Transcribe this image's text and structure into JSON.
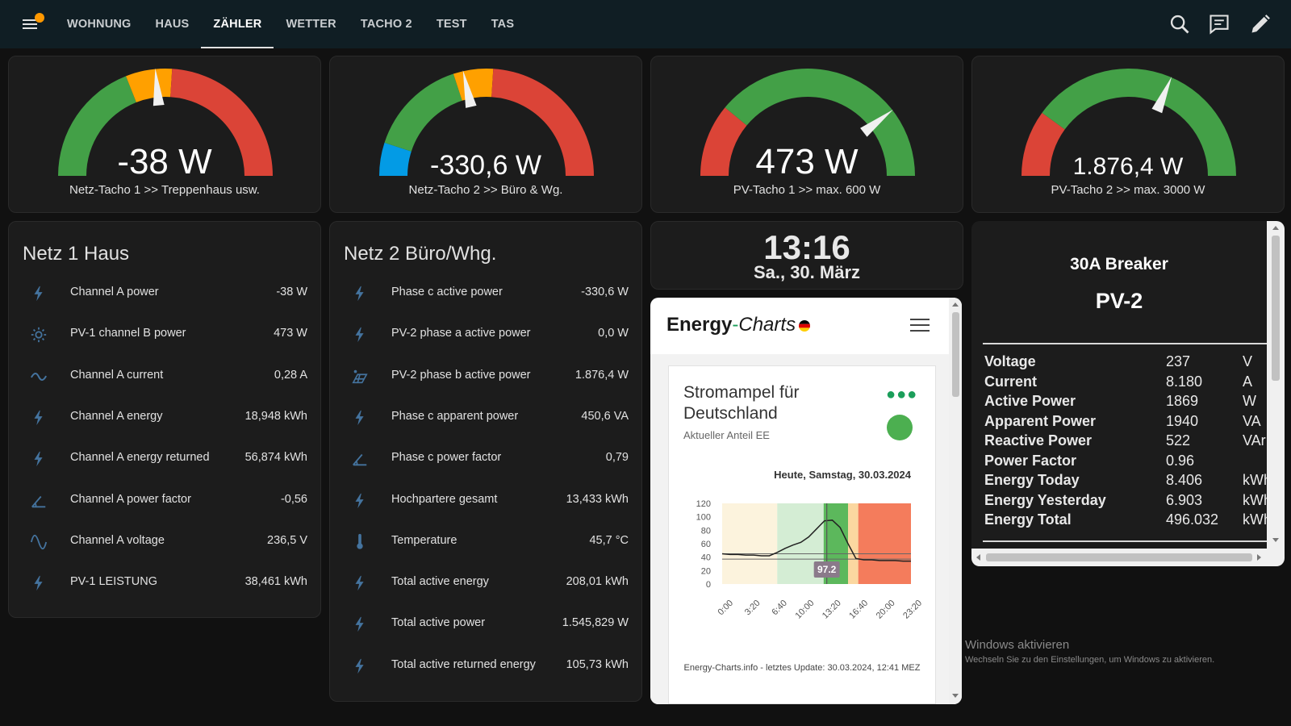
{
  "nav": {
    "tabs": [
      "WOHNUNG",
      "HAUS",
      "ZÄHLER",
      "WETTER",
      "TACHO 2",
      "TEST",
      "TAS"
    ],
    "active_tab": "ZÄHLER",
    "icons": [
      "search-icon",
      "assist-icon",
      "edit-icon"
    ]
  },
  "gauges": [
    {
      "value": "-38 W",
      "label": "Netz-Tacho 1 >> Treppenhaus usw.",
      "needle_fraction": 0.47,
      "segments": [
        "#43a047",
        "#ffa000",
        "#db4437"
      ]
    },
    {
      "value": "-330,6 W",
      "label": "Netz-Tacho 2 >> Büro & Wg.",
      "needle_fraction": 0.43,
      "segments": [
        "#039be5",
        "#43a047",
        "#ffa000",
        "#db4437"
      ]
    },
    {
      "value": "473 W",
      "label": "PV-Tacho 1 >> max. 600 W",
      "needle_fraction": 0.79,
      "segments": [
        "#db4437",
        "#43a047"
      ]
    },
    {
      "value": "1.876,4 W",
      "label": "PV-Tacho 2 >> max. 3000 W",
      "needle_fraction": 0.63,
      "segments": [
        "#db4437",
        "#43a047"
      ]
    }
  ],
  "netz1": {
    "title": "Netz 1 Haus",
    "rows": [
      {
        "icon": "flash-icon",
        "name": "Channel A power",
        "value": "-38 W"
      },
      {
        "icon": "solar-power-icon",
        "name": "PV-1 channel B power",
        "value": "473 W"
      },
      {
        "icon": "current-ac-icon",
        "name": "Channel A current",
        "value": "0,28 A"
      },
      {
        "icon": "flash-icon",
        "name": "Channel A energy",
        "value": "18,948 kWh"
      },
      {
        "icon": "flash-icon",
        "name": "Channel A energy returned",
        "value": "56,874 kWh"
      },
      {
        "icon": "angle-acute-icon",
        "name": "Channel A power factor",
        "value": "-0,56"
      },
      {
        "icon": "sine-wave-icon",
        "name": "Channel A voltage",
        "value": "236,5 V"
      },
      {
        "icon": "flash-icon",
        "name": "PV-1 LEISTUNG",
        "value": "38,461 kWh"
      }
    ]
  },
  "netz2": {
    "title": "Netz 2 Büro/Whg.",
    "rows": [
      {
        "icon": "flash-icon",
        "name": "Phase c active power",
        "value": "-330,6 W"
      },
      {
        "icon": "flash-icon",
        "name": "PV-2 phase a active power",
        "value": "0,0 W"
      },
      {
        "icon": "solar-panel-icon",
        "name": "PV-2 phase b active power",
        "value": "1.876,4 W"
      },
      {
        "icon": "flash-icon",
        "name": "Phase c apparent power",
        "value": "450,6 VA"
      },
      {
        "icon": "angle-acute-icon",
        "name": "Phase c power factor",
        "value": "0,79"
      },
      {
        "icon": "flash-icon",
        "name": "Hochpartere gesamt",
        "value": "13,433 kWh"
      },
      {
        "icon": "thermometer-icon",
        "name": "Temperature",
        "value": "45,7 °C"
      },
      {
        "icon": "flash-icon",
        "name": "Total active energy",
        "value": "208,01 kWh"
      },
      {
        "icon": "flash-icon",
        "name": "Total active power",
        "value": "1.545,829 W"
      },
      {
        "icon": "flash-icon",
        "name": "Total active returned energy",
        "value": "105,73 kWh"
      }
    ]
  },
  "clock": {
    "time": "13:16",
    "date": "Sa., 30. März"
  },
  "energy_charts": {
    "logo_bold": "Energy",
    "logo_dash": "-",
    "logo_italic": "Charts",
    "card_title": "Stromampel für Deutschland",
    "card_subtitle": "Aktueller Anteil EE",
    "date_label": "Heute, Samstag, 30.03.2024",
    "footer": "Energy-Charts.info - letztes Update: 30.03.2024, 12:41 MEZ",
    "colors": {
      "green_light": "#4caf50",
      "dots": "#1b9e5a"
    }
  },
  "chart_data": {
    "type": "area",
    "title": "",
    "xlabel": "",
    "ylabel": "",
    "x_ticks": [
      "0:00",
      "3:20",
      "6:40",
      "10:00",
      "13:20",
      "16:40",
      "20:00",
      "23:20"
    ],
    "y_ticks": [
      0,
      20,
      40,
      60,
      80,
      100,
      120
    ],
    "ylim": [
      0,
      120
    ],
    "xlim_hours": [
      0,
      24
    ],
    "marker_label": "97.2",
    "marker_hour": 13.3,
    "reference_lines": [
      37,
      45
    ],
    "bands": [
      {
        "from": 0,
        "to": 7.0,
        "color": "#fcf3dd"
      },
      {
        "from": 7.0,
        "to": 12.9,
        "color": "#d4edd4"
      },
      {
        "from": 12.9,
        "to": 16.0,
        "color": "#5cb85c"
      },
      {
        "from": 16.0,
        "to": 17.3,
        "color": "#fbd7a0"
      },
      {
        "from": 17.3,
        "to": 24,
        "color": "#f47c5c"
      }
    ],
    "series": [
      {
        "x": [
          0,
          1,
          2,
          3,
          4,
          5,
          6,
          7,
          8,
          9,
          10,
          11,
          12,
          13,
          14,
          15,
          16,
          17,
          18,
          19,
          20,
          21,
          22,
          23,
          24
        ],
        "values": [
          45,
          44,
          44,
          43,
          43,
          42,
          42,
          47,
          53,
          58,
          62,
          70,
          82,
          94,
          95,
          84,
          60,
          38,
          36,
          36,
          35,
          35,
          35,
          34,
          34
        ]
      }
    ]
  },
  "breaker": {
    "title": "30A Breaker",
    "subtitle": "PV-2",
    "rows": [
      {
        "name": "Voltage",
        "value": "237",
        "unit": "V"
      },
      {
        "name": "Current",
        "value": "8.180",
        "unit": "A"
      },
      {
        "name": "Active Power",
        "value": "1869",
        "unit": "W"
      },
      {
        "name": "Apparent Power",
        "value": "1940",
        "unit": "VA"
      },
      {
        "name": "Reactive Power",
        "value": "522",
        "unit": "VAr"
      },
      {
        "name": "Power Factor",
        "value": "0.96",
        "unit": ""
      },
      {
        "name": "Energy Today",
        "value": "8.406",
        "unit": "kWh"
      },
      {
        "name": "Energy Yesterday",
        "value": "6.903",
        "unit": "kWh"
      },
      {
        "name": "Energy Total",
        "value": "496.032",
        "unit": "kWh"
      }
    ]
  },
  "windows": {
    "title": "Windows aktivieren",
    "subtitle": "Wechseln Sie zu den Einstellungen, um Windows zu aktivieren."
  }
}
